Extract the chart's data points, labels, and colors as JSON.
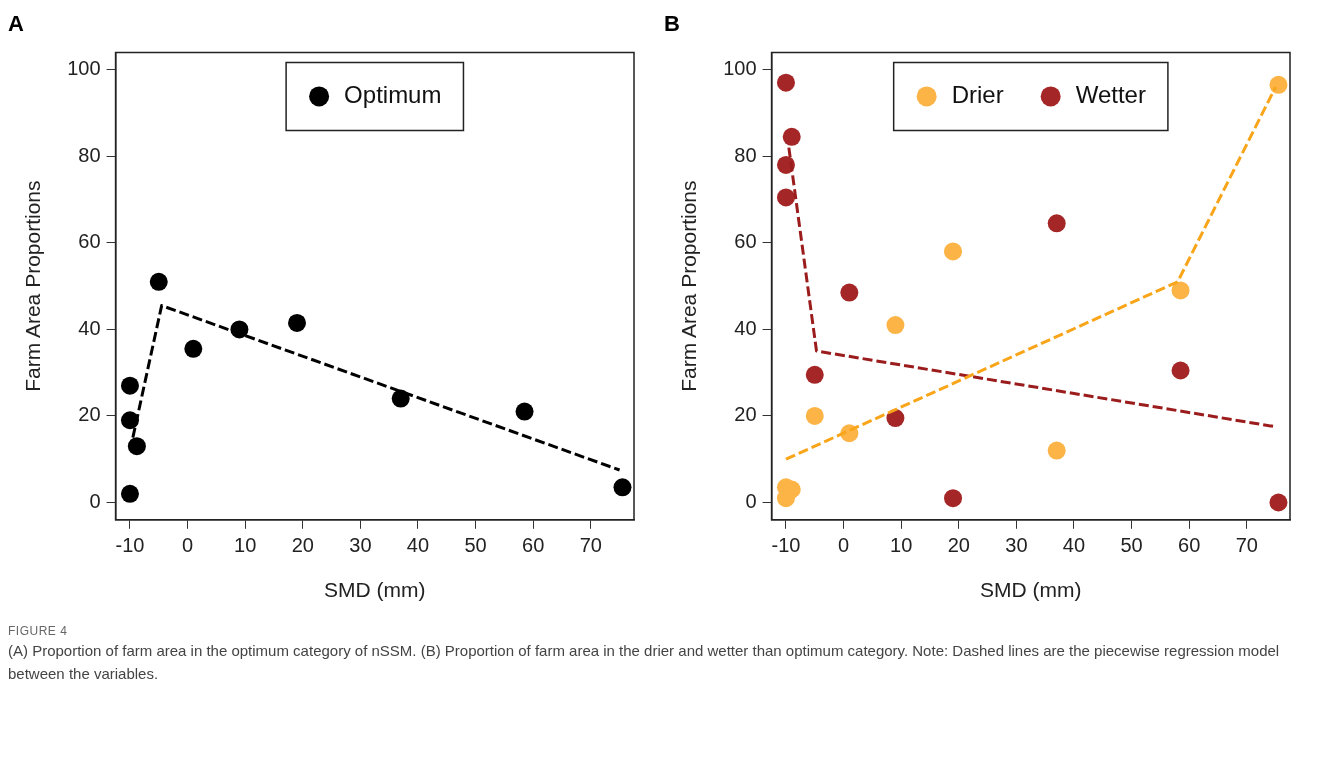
{
  "chart_data": [
    {
      "type": "scatter",
      "title": "A",
      "xlabel": "SMD (mm)",
      "ylabel": "Farm Area Proportions",
      "xlim": [
        -12.5,
        77.5
      ],
      "ylim": [
        -4,
        104
      ],
      "xticks": [
        -10,
        0,
        10,
        20,
        30,
        40,
        50,
        60,
        70
      ],
      "yticks": [
        0,
        20,
        40,
        60,
        80,
        100
      ],
      "grid": false,
      "legend": "top",
      "annotations": [
        "FIGURE 4",
        "(A) Proportion of farm area in the optimum category of nSSM. (B) Proportion of farm area in the drier and wetter than optimum category. Note: Dashed lines are the piecewise regression model between the variables."
      ],
      "series": [
        {
          "name": "Optimum",
          "type": "scatter",
          "marker": "circle",
          "color": "#000000",
          "x": [
            -10,
            -10,
            -10,
            -8.8,
            -5,
            1,
            9,
            19,
            37,
            58.5,
            75.5
          ],
          "values": [
            2,
            19,
            27,
            13,
            51,
            35.5,
            40,
            41.5,
            24,
            21,
            3.5
          ]
        },
        {
          "type": "line",
          "marker": "none",
          "line_style": "dashed",
          "color": "#000000",
          "x": [
            -9.5,
            -4.5,
            75
          ],
          "values": [
            15,
            45.5,
            7.5
          ]
        }
      ]
    },
    {
      "type": "scatter",
      "title": "B",
      "xlabel": "SMD (mm)",
      "ylabel": "Farm Area Proportions",
      "xlim": [
        -12.5,
        77.5
      ],
      "ylim": [
        -4,
        104
      ],
      "xticks": [
        -10,
        0,
        10,
        20,
        30,
        40,
        50,
        60,
        70
      ],
      "yticks": [
        0,
        20,
        40,
        60,
        80,
        100
      ],
      "grid": false,
      "legend": "top",
      "series": [
        {
          "name": "Drier",
          "type": "scatter",
          "marker": "circle",
          "color": "#fbb445",
          "x": [
            -10,
            -10,
            -9,
            -5,
            1,
            9,
            19,
            37,
            58.5,
            75.5
          ],
          "values": [
            1,
            3.5,
            3,
            20,
            16,
            41,
            58,
            12,
            49,
            96.5
          ]
        },
        {
          "name": "Wetter",
          "type": "scatter",
          "marker": "circle",
          "color": "#a52626",
          "x": [
            -10,
            -9,
            -10,
            -10,
            -5,
            1,
            9,
            19,
            37,
            58.5,
            75.5
          ],
          "values": [
            97,
            84.5,
            78,
            70.5,
            29.5,
            48.5,
            19.5,
            1,
            64.5,
            30.5,
            0
          ]
        },
        {
          "type": "line",
          "marker": "none",
          "line_style": "dashed",
          "color": "#f9a51a",
          "x": [
            -10,
            58,
            75
          ],
          "values": [
            10,
            51,
            96
          ]
        },
        {
          "type": "line",
          "marker": "none",
          "line_style": "dashed",
          "color": "#9b1c1c",
          "x": [
            -9.5,
            -4.7,
            75
          ],
          "values": [
            82,
            35,
            17.5
          ]
        }
      ]
    }
  ]
}
